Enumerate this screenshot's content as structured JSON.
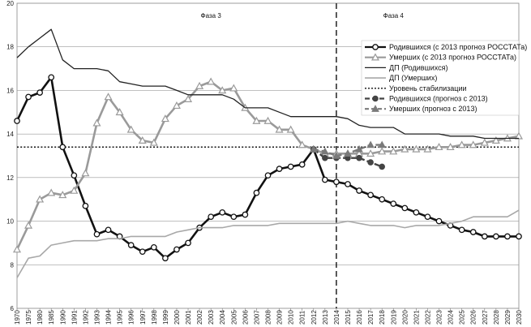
{
  "chart_data": {
    "type": "line",
    "ylim": [
      6,
      20
    ],
    "yticks": [
      6,
      8,
      10,
      12,
      14,
      16,
      18,
      20
    ],
    "xlabels": [
      "1970",
      "1975",
      "1980",
      "1985",
      "1990",
      "1991",
      "1992",
      "1993",
      "1994",
      "1995",
      "1996",
      "1997",
      "1998",
      "1999",
      "2000",
      "2001",
      "2002",
      "2003",
      "2004",
      "2005",
      "2006",
      "2007",
      "2008",
      "2009",
      "2010",
      "2011",
      "2012",
      "2013",
      "2014",
      "2015",
      "2016",
      "2017",
      "2018",
      "2019",
      "2020",
      "2021",
      "2022",
      "2023",
      "2024",
      "2025",
      "2026",
      "2027",
      "2028",
      "2029",
      "2030"
    ],
    "phases": [
      {
        "label": "Фаза 3",
        "at_index": 17
      },
      {
        "label": "Фаза 4",
        "at_index": 33
      }
    ],
    "divider_index": 28,
    "stabilization_level": 13.4,
    "series": [
      {
        "name": "Родившихся (с 2013 прогноз РОССТАТа)",
        "color": "#111111",
        "width": 2.6,
        "marker": "circle-open",
        "values": [
          14.6,
          15.7,
          15.9,
          16.6,
          13.4,
          12.1,
          10.7,
          9.4,
          9.6,
          9.3,
          8.9,
          8.6,
          8.8,
          8.3,
          8.7,
          9.0,
          9.7,
          10.2,
          10.4,
          10.2,
          10.3,
          11.3,
          12.1,
          12.4,
          12.5,
          12.6,
          13.3,
          11.9,
          11.8,
          11.7,
          11.4,
          11.2,
          11.0,
          10.8,
          10.6,
          10.4,
          10.2,
          10.0,
          9.8,
          9.6,
          9.5,
          9.3,
          9.3,
          9.3,
          9.3
        ]
      },
      {
        "name": "Умерших (с 2013 прогноз РОССТАТа)",
        "color": "#9a9a9a",
        "width": 2.6,
        "marker": "triangle-open",
        "values": [
          8.7,
          9.8,
          11.0,
          11.3,
          11.2,
          11.4,
          12.2,
          14.5,
          15.7,
          15.0,
          14.2,
          13.7,
          13.6,
          14.7,
          15.3,
          15.6,
          16.2,
          16.4,
          16.0,
          16.1,
          15.2,
          14.6,
          14.6,
          14.2,
          14.2,
          13.5,
          13.3,
          13.1,
          13.1,
          13.1,
          13.1,
          13.1,
          13.2,
          13.2,
          13.3,
          13.3,
          13.3,
          13.4,
          13.4,
          13.5,
          13.5,
          13.6,
          13.7,
          13.8,
          13.9
        ]
      },
      {
        "name": "ДП (Родившихся)",
        "color": "#222222",
        "width": 1.3,
        "marker": "none",
        "values": [
          17.5,
          18.0,
          18.4,
          18.8,
          17.4,
          17.0,
          17.0,
          17.0,
          16.9,
          16.4,
          16.3,
          16.2,
          16.2,
          16.2,
          16.0,
          15.8,
          15.8,
          15.8,
          15.8,
          15.6,
          15.2,
          15.2,
          15.2,
          15.0,
          14.8,
          14.8,
          14.8,
          14.8,
          14.8,
          14.7,
          14.4,
          14.3,
          14.3,
          14.3,
          14.0,
          14.0,
          14.0,
          14.0,
          13.9,
          13.9,
          13.9,
          13.8,
          13.8,
          13.8,
          13.8
        ]
      },
      {
        "name": "ДП (Умерших)",
        "color": "#a8a8a8",
        "width": 1.6,
        "marker": "none",
        "values": [
          7.4,
          8.3,
          8.4,
          8.9,
          9.0,
          9.1,
          9.1,
          9.1,
          9.2,
          9.2,
          9.3,
          9.3,
          9.3,
          9.3,
          9.5,
          9.6,
          9.7,
          9.7,
          9.7,
          9.8,
          9.8,
          9.8,
          9.8,
          9.9,
          9.9,
          9.9,
          9.9,
          9.9,
          9.9,
          10.0,
          9.9,
          9.8,
          9.8,
          9.8,
          9.7,
          9.8,
          9.8,
          9.8,
          9.9,
          10.0,
          10.2,
          10.2,
          10.2,
          10.2,
          10.5
        ]
      },
      {
        "name": "Уровень стабилизации",
        "color": "#111111",
        "width": 1.4,
        "marker": "dotted",
        "values": []
      },
      {
        "name": "Родившихся (прогноз с 2013)",
        "color": "#444444",
        "width": 2.4,
        "marker": "circle-filled",
        "start_index": 26,
        "values": [
          13.3,
          12.9,
          12.9,
          12.9,
          12.9,
          12.7,
          12.5
        ]
      },
      {
        "name": "Умерших (прогноз с 2013)",
        "color": "#7a7a7a",
        "width": 2.4,
        "marker": "triangle-filled",
        "start_index": 26,
        "values": [
          13.3,
          13.2,
          13.0,
          13.1,
          13.3,
          13.5,
          13.5
        ]
      }
    ]
  }
}
